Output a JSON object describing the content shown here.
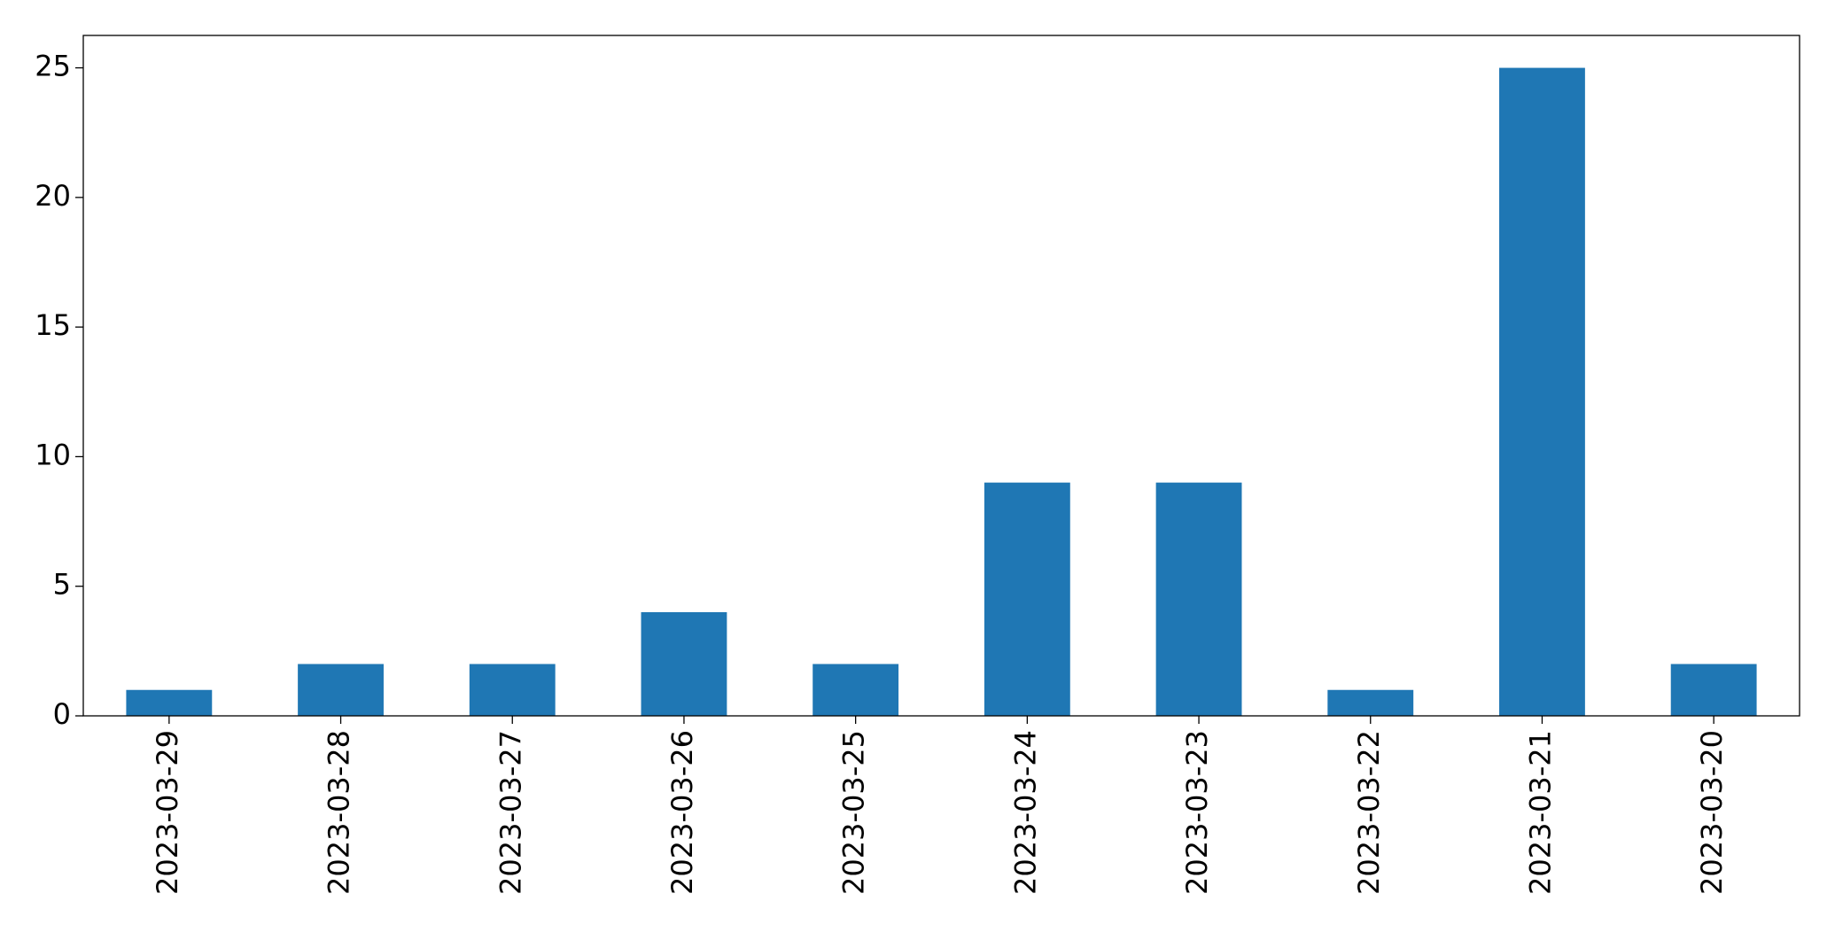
{
  "chart_data": {
    "type": "bar",
    "categories": [
      "2023-03-29",
      "2023-03-28",
      "2023-03-27",
      "2023-03-26",
      "2023-03-25",
      "2023-03-24",
      "2023-03-23",
      "2023-03-22",
      "2023-03-21",
      "2023-03-20"
    ],
    "values": [
      1,
      2,
      2,
      4,
      2,
      9,
      9,
      1,
      25,
      2
    ],
    "color": "#1f77b4",
    "ylim": [
      0,
      26.25
    ],
    "yticks": [
      0,
      5,
      10,
      15,
      20,
      25
    ],
    "grid": false
  }
}
